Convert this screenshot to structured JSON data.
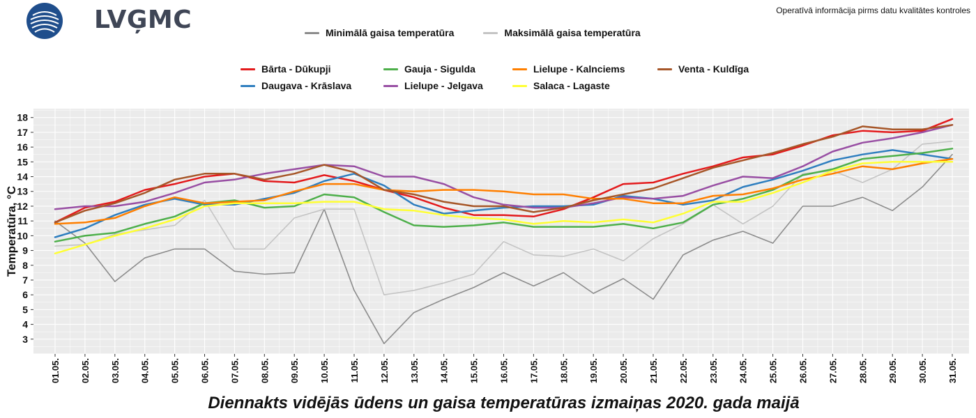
{
  "header": {
    "logo_text": "LVĢMC",
    "note": "Operatīvā informācija pirms datu kvalitātes kontroles"
  },
  "colors": {
    "min_air": "#8c8c8c",
    "max_air": "#c4c4c4",
    "barta": "#e31a1c",
    "daugava": "#2e7ebf",
    "gauja": "#4daf4a",
    "lielupe_jelgava": "#984ea3",
    "lielupe_kalnciems": "#ff7f00",
    "salaca": "#ffff33",
    "venta": "#a65628",
    "logo": "#1f4e8c"
  },
  "chart_data": {
    "type": "line",
    "title": "Diennakts vidējās ūdens un gaisa temperatūras izmaiņas 2020. gada maijā",
    "xlabel": "",
    "ylabel": "Temperatūra, °C",
    "ylim": [
      2,
      18.6
    ],
    "yticks": [
      3,
      4,
      5,
      6,
      7,
      8,
      9,
      10,
      11,
      12,
      13,
      14,
      15,
      16,
      17,
      18
    ],
    "grid": true,
    "categories": [
      "01.05.",
      "02.05.",
      "03.05.",
      "04.05.",
      "05.05.",
      "06.05.",
      "07.05.",
      "08.05.",
      "09.05.",
      "10.05.",
      "11.05.",
      "12.05.",
      "13.05.",
      "14.05.",
      "15.05.",
      "16.05.",
      "17.05.",
      "18.05.",
      "19.05.",
      "20.05.",
      "21.05.",
      "22.05.",
      "23.05.",
      "24.05.",
      "25.05.",
      "26.05.",
      "27.05.",
      "28.05.",
      "29.05.",
      "30.05.",
      "31.05."
    ],
    "series": [
      {
        "name": "Minimālā gaisa temperatūra",
        "key": "min_air",
        "values": [
          11.0,
          9.5,
          6.9,
          8.5,
          9.1,
          9.1,
          7.6,
          7.4,
          7.5,
          11.8,
          6.3,
          2.7,
          4.8,
          5.7,
          6.5,
          7.5,
          6.6,
          7.5,
          6.1,
          7.1,
          5.7,
          8.7,
          9.7,
          10.3,
          9.5,
          12.0,
          12.0,
          12.6,
          11.7,
          13.3,
          15.5
        ]
      },
      {
        "name": "Maksimālā gaisa temperatūra",
        "key": "max_air",
        "values": [
          9.3,
          9.4,
          10.1,
          10.4,
          10.7,
          12.4,
          9.1,
          9.1,
          11.2,
          11.8,
          11.8,
          6.0,
          6.3,
          6.8,
          7.4,
          9.6,
          8.7,
          8.6,
          9.1,
          8.3,
          9.8,
          10.8,
          12.1,
          10.8,
          12.0,
          14.2,
          14.4,
          13.6,
          14.5,
          16.2,
          16.4
        ]
      },
      {
        "name": "Bārta - Dūkupji",
        "key": "barta",
        "values": [
          10.9,
          11.9,
          12.3,
          13.1,
          13.5,
          14.0,
          14.2,
          13.7,
          13.6,
          14.1,
          13.7,
          13.1,
          12.6,
          11.9,
          11.4,
          11.4,
          11.3,
          11.8,
          12.6,
          13.5,
          13.6,
          14.2,
          14.7,
          15.3,
          15.5,
          16.1,
          16.8,
          17.1,
          17.0,
          17.1,
          17.9
        ]
      },
      {
        "name": "Daugava - Krāslava",
        "key": "daugava",
        "values": [
          9.9,
          10.5,
          11.4,
          12.1,
          12.5,
          12.1,
          12.1,
          12.5,
          12.9,
          13.7,
          14.2,
          13.4,
          12.1,
          11.5,
          11.7,
          11.9,
          12.0,
          12.0,
          12.1,
          12.7,
          12.5,
          12.1,
          12.4,
          13.3,
          13.8,
          14.4,
          15.1,
          15.5,
          15.8,
          15.5,
          15.2
        ]
      },
      {
        "name": "Gauja - Sigulda",
        "key": "gauja",
        "values": [
          9.6,
          10.0,
          10.2,
          10.8,
          11.3,
          12.2,
          12.4,
          11.9,
          12.0,
          12.8,
          12.6,
          11.6,
          10.7,
          10.6,
          10.7,
          10.9,
          10.6,
          10.6,
          10.6,
          10.8,
          10.5,
          10.9,
          12.1,
          12.5,
          13.1,
          14.1,
          14.5,
          15.2,
          15.4,
          15.6,
          15.9
        ]
      },
      {
        "name": "Lielupe - Jelgava",
        "key": "lielupe_jelgava",
        "values": [
          11.8,
          12.0,
          12.0,
          12.3,
          12.9,
          13.6,
          13.8,
          14.2,
          14.5,
          14.8,
          14.7,
          14.0,
          14.0,
          13.5,
          12.6,
          12.1,
          11.9,
          11.9,
          12.2,
          12.6,
          12.5,
          12.7,
          13.4,
          14.0,
          13.9,
          14.7,
          15.7,
          16.3,
          16.6,
          17.0,
          17.5
        ]
      },
      {
        "name": "Lielupe - Kalnciems",
        "key": "lielupe_kalnciems",
        "values": [
          10.8,
          10.9,
          11.2,
          12.0,
          12.6,
          12.2,
          12.3,
          12.4,
          13.0,
          13.5,
          13.5,
          13.1,
          13.0,
          13.1,
          13.1,
          13.0,
          12.8,
          12.8,
          12.5,
          12.5,
          12.2,
          12.2,
          12.7,
          12.8,
          13.2,
          13.8,
          14.2,
          14.7,
          14.5,
          14.9,
          15.2
        ]
      },
      {
        "name": "Salaca - Lagaste",
        "key": "salaca",
        "values": [
          8.8,
          9.4,
          10.0,
          10.5,
          11.1,
          12.0,
          12.2,
          12.2,
          12.2,
          12.3,
          12.3,
          11.8,
          11.7,
          11.4,
          11.2,
          11.1,
          10.8,
          11.0,
          10.9,
          11.1,
          10.9,
          11.5,
          12.3,
          12.3,
          12.9,
          13.6,
          14.4,
          14.9,
          15.0,
          15.0,
          15.0
        ]
      },
      {
        "name": "Venta - Kuldīga",
        "key": "venta",
        "values": [
          10.9,
          11.7,
          12.2,
          12.9,
          13.8,
          14.2,
          14.2,
          13.8,
          14.2,
          14.8,
          14.3,
          13.1,
          12.8,
          12.3,
          12.0,
          12.0,
          11.6,
          11.9,
          12.4,
          12.8,
          13.2,
          13.9,
          14.6,
          15.1,
          15.6,
          16.2,
          16.7,
          17.4,
          17.2,
          17.2,
          17.5
        ]
      }
    ]
  }
}
